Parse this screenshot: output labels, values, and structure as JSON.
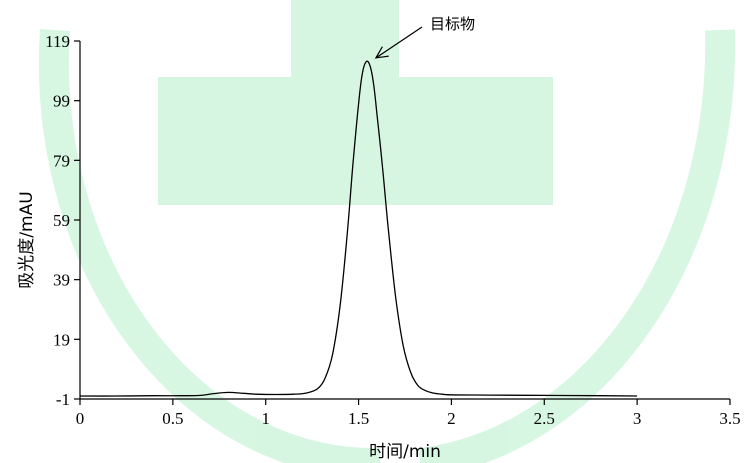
{
  "chart_data": {
    "type": "line",
    "title": "",
    "xlabel": "时间/min",
    "ylabel": "吸光度/mAU",
    "xlim": [
      0,
      3.5
    ],
    "ylim": [
      -1,
      119
    ],
    "x_ticks": [
      0,
      0.5,
      1,
      1.5,
      2,
      2.5,
      3,
      3.5
    ],
    "x_tick_labels": [
      "0",
      "0.5",
      "1",
      "1.5",
      "2",
      "2.5",
      "3",
      "3.5"
    ],
    "y_ticks": [
      -1,
      19,
      39,
      59,
      79,
      99,
      119
    ],
    "y_tick_labels": [
      "-1",
      "19",
      "39",
      "59",
      "79",
      "99",
      "119"
    ],
    "grid": false,
    "legend": "none",
    "line_color": "#000000",
    "watermark_color": "#b8f0cc",
    "series": [
      {
        "x": [
          0.0,
          0.2,
          0.4,
          0.55,
          0.65,
          0.72,
          0.8,
          0.88,
          0.95,
          1.05,
          1.15,
          1.22,
          1.28,
          1.32,
          1.36,
          1.4,
          1.44,
          1.47,
          1.5,
          1.52,
          1.54,
          1.56,
          1.58,
          1.6,
          1.63,
          1.66,
          1.7,
          1.74,
          1.78,
          1.82,
          1.86,
          1.9,
          1.95,
          2.0,
          2.2,
          2.5,
          2.8,
          3.0
        ],
        "y": [
          0,
          0,
          0.1,
          0.1,
          0.2,
          0.8,
          1.2,
          0.9,
          0.6,
          0.5,
          0.6,
          1.0,
          2.5,
          6,
          14,
          30,
          55,
          78,
          98,
          108,
          112,
          111,
          105,
          94,
          76,
          56,
          33,
          17,
          8,
          3.5,
          1.8,
          1.0,
          0.6,
          0.4,
          0.3,
          0.2,
          0.1,
          0.0
        ]
      }
    ],
    "annotations": [
      {
        "text": "目标物",
        "target_x": 1.55,
        "target_y": 114
      }
    ]
  }
}
